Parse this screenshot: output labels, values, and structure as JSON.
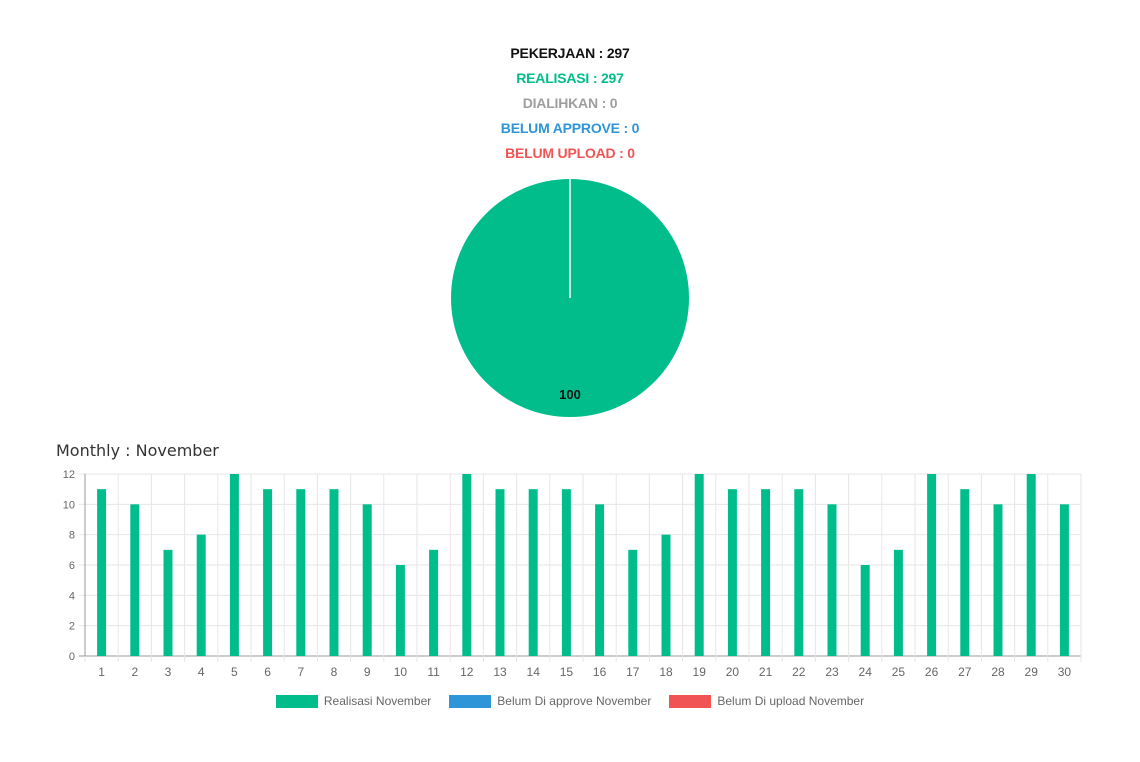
{
  "summary": {
    "pekerjaan": "PEKERJAAN : 297",
    "realisasi": "REALISASI : 297",
    "dialihkan": "DIALIHKAN : 0",
    "belum_approve": "BELUM APPROVE : 0",
    "belum_upload": "BELUM UPLOAD : 0"
  },
  "colors": {
    "pekerjaan": "#111111",
    "realisasi": "#00bd8b",
    "dialihkan": "#9e9e9e",
    "belum_approve": "#2e95d8",
    "belum_upload": "#f05454"
  },
  "pie_chart": {
    "type": "pie",
    "slices": [
      {
        "value": 100,
        "color": "#00bd8b"
      }
    ],
    "data_label": "100"
  },
  "monthly_title": "Monthly : November",
  "chart_data": {
    "type": "bar",
    "categories": [
      "1",
      "2",
      "3",
      "4",
      "5",
      "6",
      "7",
      "8",
      "9",
      "10",
      "11",
      "12",
      "13",
      "14",
      "15",
      "16",
      "17",
      "18",
      "19",
      "20",
      "21",
      "22",
      "23",
      "24",
      "25",
      "26",
      "27",
      "28",
      "29",
      "30"
    ],
    "series": [
      {
        "name": "Realisasi November",
        "color": "#00bd8b",
        "values": [
          11,
          10,
          7,
          8,
          12,
          11,
          11,
          11,
          10,
          6,
          7,
          12,
          11,
          11,
          11,
          10,
          7,
          8,
          12,
          11,
          11,
          11,
          10,
          6,
          7,
          12,
          11,
          10,
          12,
          10
        ]
      },
      {
        "name": "Belum Di approve November",
        "color": "#2e95d8",
        "values": [
          0,
          0,
          0,
          0,
          0,
          0,
          0,
          0,
          0,
          0,
          0,
          0,
          0,
          0,
          0,
          0,
          0,
          0,
          0,
          0,
          0,
          0,
          0,
          0,
          0,
          0,
          0,
          0,
          0,
          0
        ]
      },
      {
        "name": "Belum Di upload November",
        "color": "#f05454",
        "values": [
          0,
          0,
          0,
          0,
          0,
          0,
          0,
          0,
          0,
          0,
          0,
          0,
          0,
          0,
          0,
          0,
          0,
          0,
          0,
          0,
          0,
          0,
          0,
          0,
          0,
          0,
          0,
          0,
          0,
          0
        ]
      }
    ],
    "yticks": [
      0,
      2,
      4,
      6,
      8,
      10,
      12
    ],
    "ylim": [
      0,
      12
    ],
    "grid": true,
    "legend_position": "bottom"
  }
}
